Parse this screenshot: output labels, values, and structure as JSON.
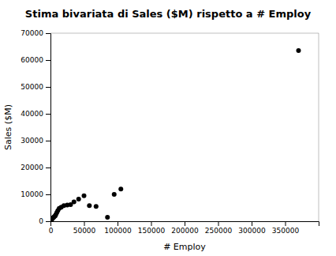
{
  "chart_data": {
    "type": "scatter",
    "title": "Stima bivariata di Sales ($M) rispetto a # Employ",
    "xlabel": "# Employ",
    "ylabel": "Sales ($M)",
    "x": [
      1000,
      2000,
      3000,
      4500,
      5500,
      7000,
      8000,
      9500,
      11000,
      13000,
      16000,
      20000,
      25000,
      30000,
      35000,
      42000,
      50000,
      58000,
      68000,
      85000,
      95000,
      105000,
      370000
    ],
    "values": [
      300,
      700,
      1000,
      1400,
      1700,
      2000,
      2500,
      3200,
      4000,
      4800,
      5200,
      5800,
      6000,
      6200,
      7200,
      8200,
      9500,
      5800,
      5500,
      1500,
      10000,
      12000,
      63500
    ],
    "color": "#000000",
    "xlim": [
      0,
      400000
    ],
    "ylim": [
      0,
      70000
    ],
    "xticks": [
      0,
      50000,
      100000,
      150000,
      200000,
      250000,
      300000,
      350000
    ],
    "yticks": [
      0,
      10000,
      20000,
      30000,
      40000,
      50000,
      60000,
      70000
    ],
    "grid": false
  }
}
